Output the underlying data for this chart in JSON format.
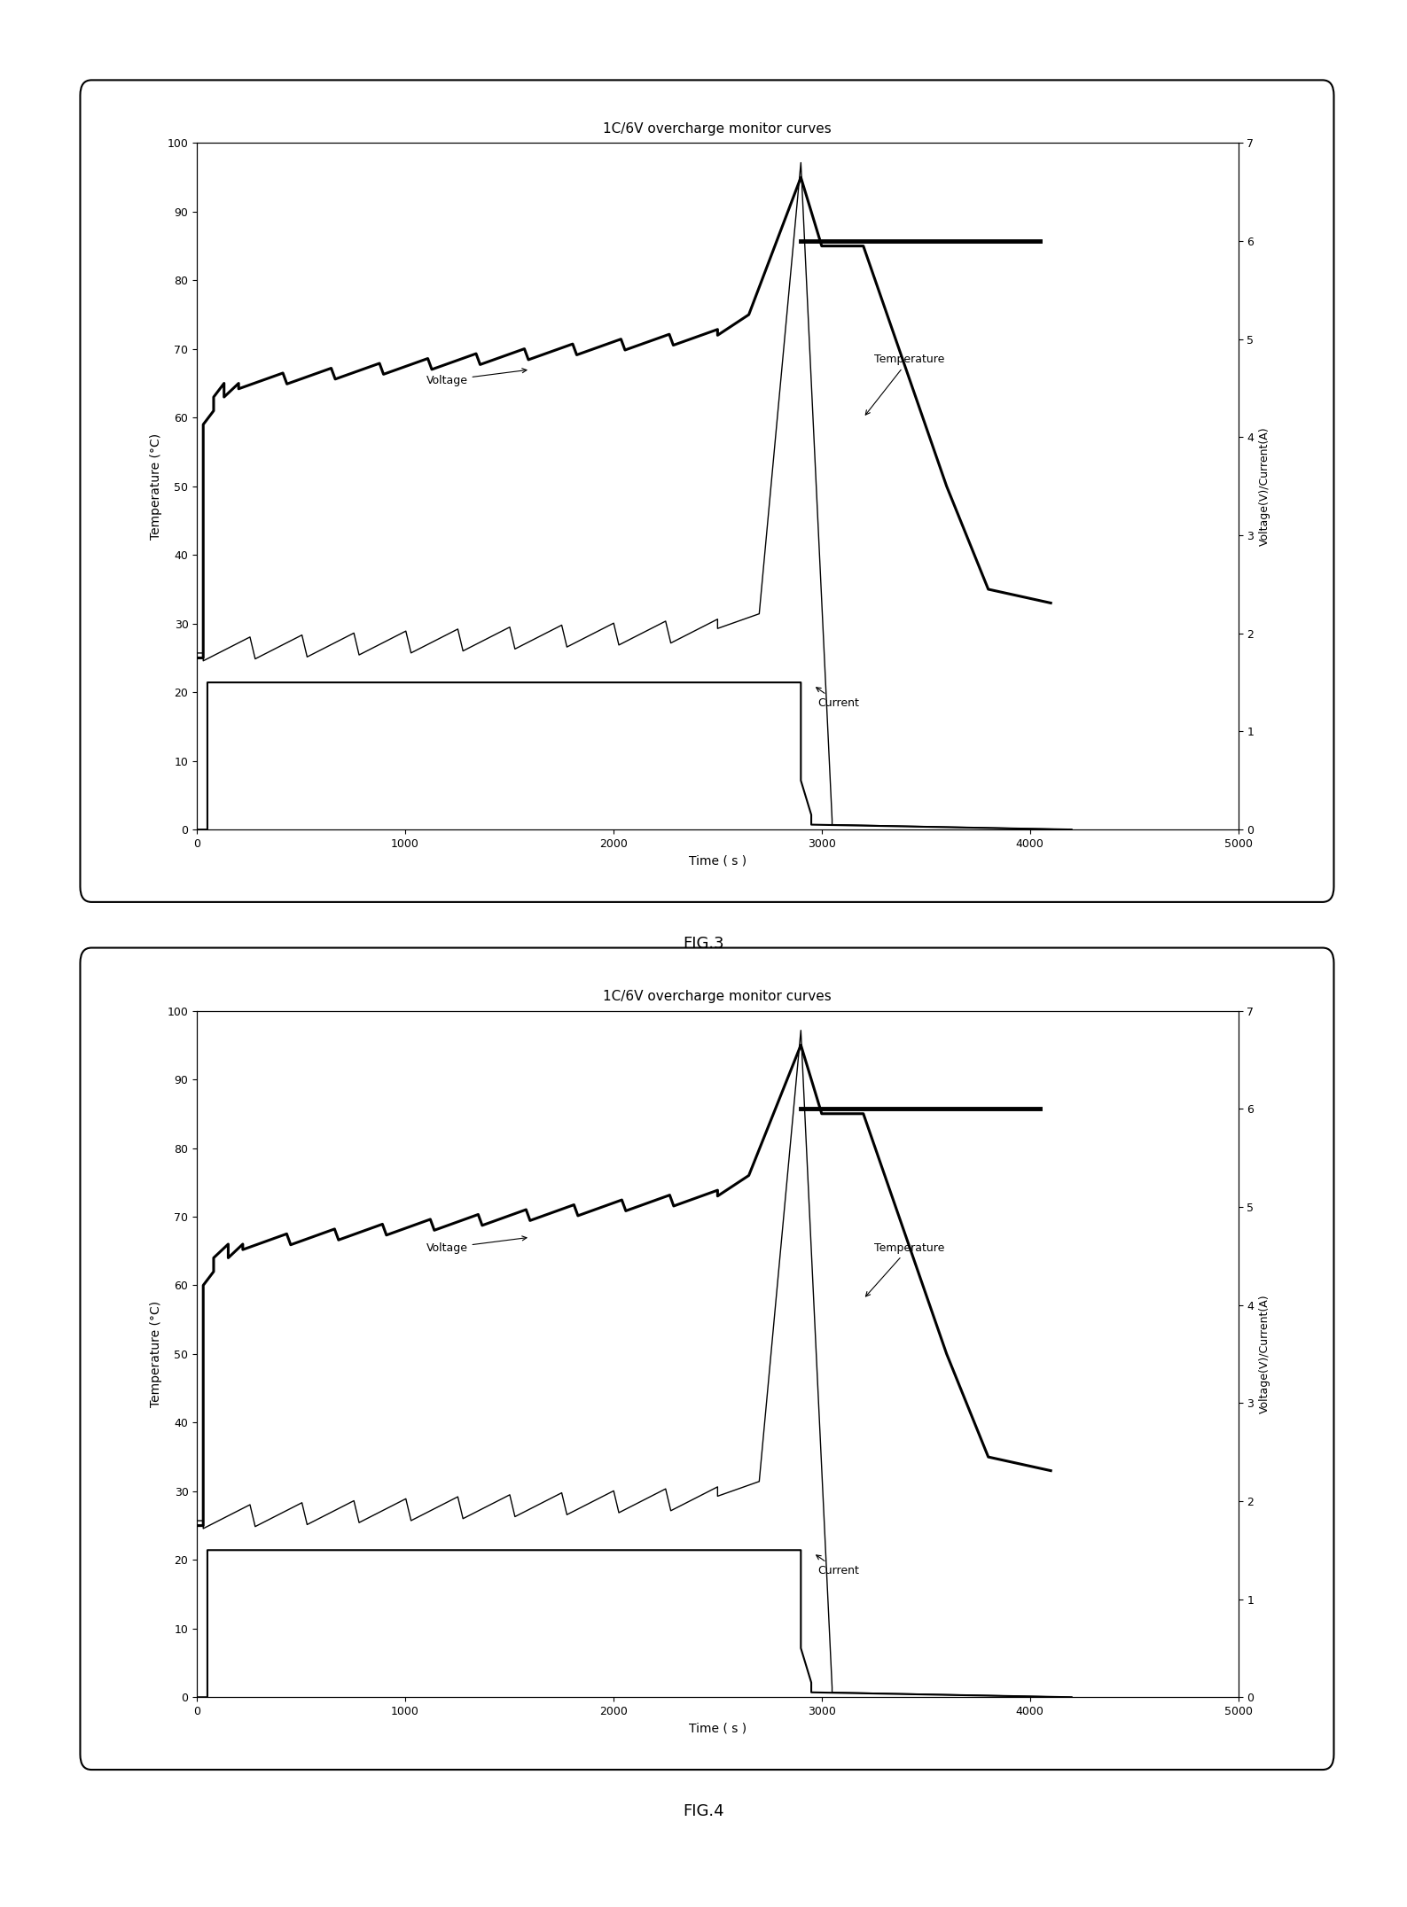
{
  "title": "1C/6V overcharge monitor curves",
  "xlabel": "Time ( s )",
  "ylabel_left": "Temperature (°C)",
  "ylabel_right": "Voltage(V)/Current(A)",
  "xlim": [
    0,
    5000
  ],
  "ylim_left": [
    0,
    100
  ],
  "ylim_right": [
    0,
    7
  ],
  "xticks": [
    0,
    1000,
    2000,
    3000,
    4000,
    5000
  ],
  "yticks_left": [
    0,
    10,
    20,
    30,
    40,
    50,
    60,
    70,
    80,
    90,
    100
  ],
  "yticks_right": [
    0,
    1,
    2,
    3,
    4,
    5,
    6,
    7
  ],
  "fig3_label": "FIG.3",
  "fig4_label": "FIG.4",
  "background_color": "#ffffff",
  "line_color": "#000000",
  "fig_width": 15.87,
  "fig_height": 21.52,
  "dpi": 100
}
